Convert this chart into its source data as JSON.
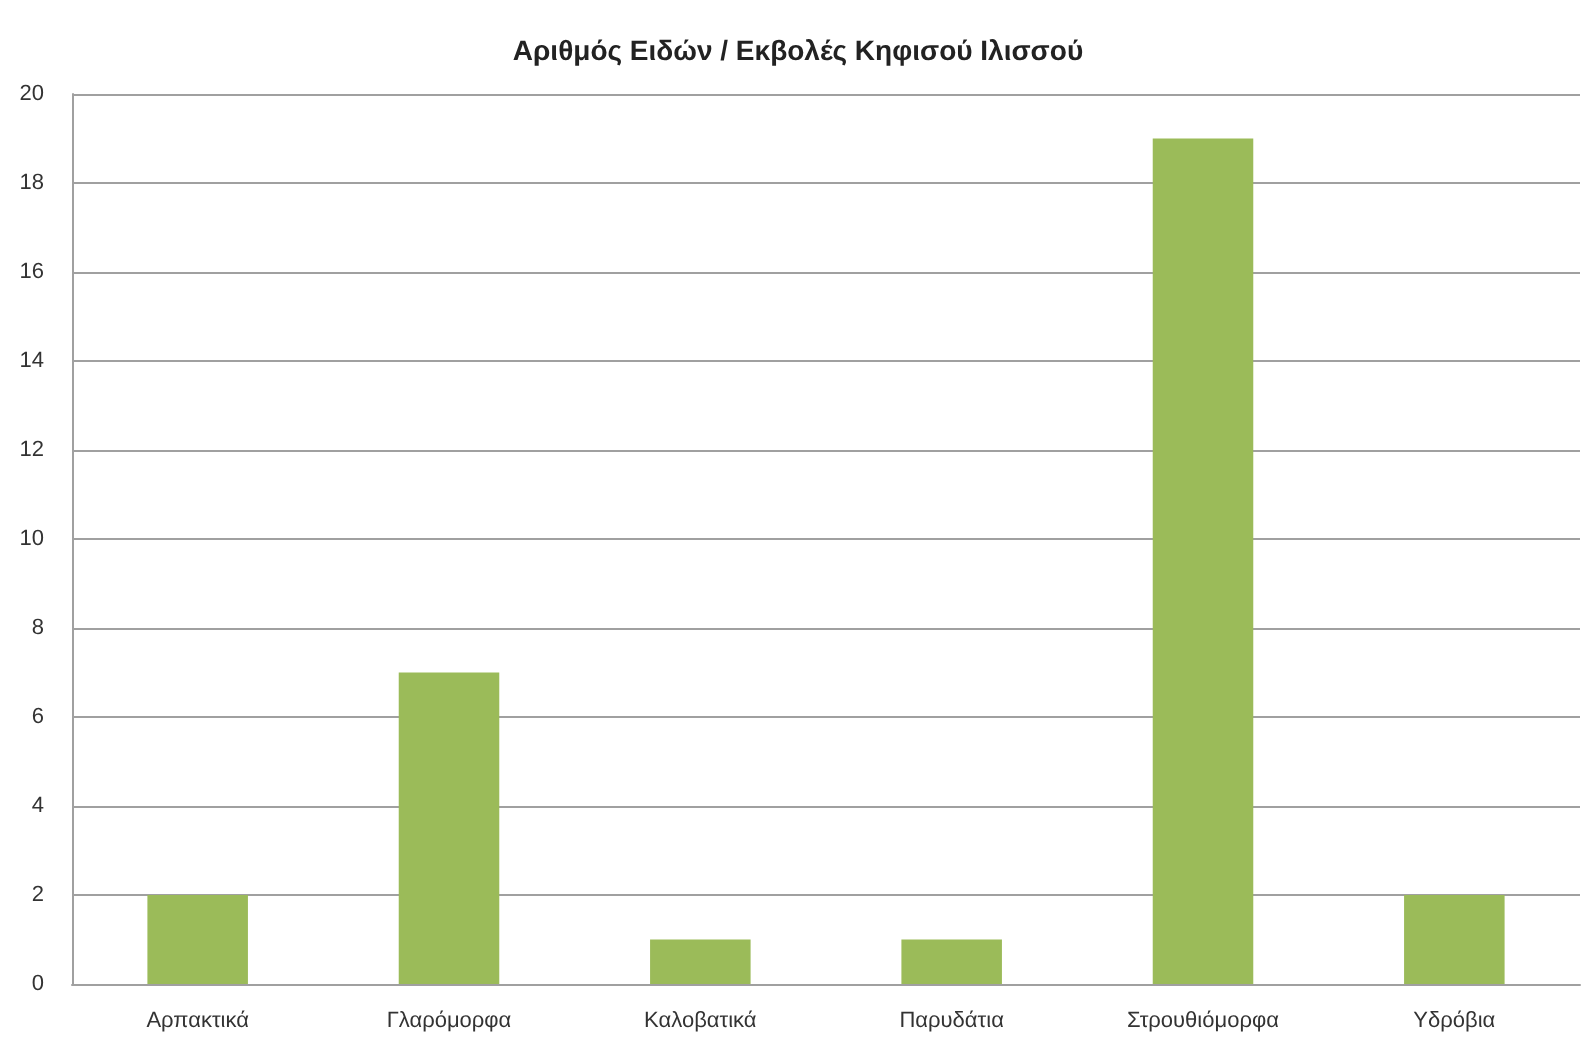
{
  "chart_data": {
    "type": "bar",
    "title": "Αριθμός Ειδών / Εκβολές Κηφισού Ιλισσού",
    "categories": [
      "Αρπακτικά",
      "Γλαρόμορφα",
      "Καλοβατικά",
      "Παρυδάτια",
      "Στρουθιόμορφα",
      "Υδρόβια"
    ],
    "values": [
      2,
      7,
      1,
      1,
      19,
      2
    ],
    "color": "#9bbb59",
    "ylim": [
      0,
      20
    ],
    "yticks": [
      0,
      2,
      4,
      6,
      8,
      10,
      12,
      14,
      16,
      18,
      20
    ],
    "grid": "y"
  }
}
